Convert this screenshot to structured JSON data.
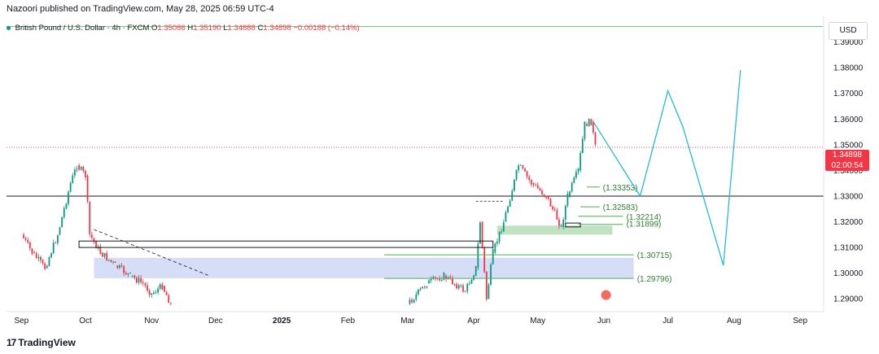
{
  "header": {
    "published": "Nazoori published on TradingView.com, May 28, 2025 06:59 UTC-4"
  },
  "legend": {
    "symbol": "British Pound / U.S. Dollar · 4h · FXCM",
    "open_label": "O",
    "open": "1.35086",
    "high_label": "H",
    "high": "1.35190",
    "low_label": "L",
    "low": "1.34888",
    "close_label": "C",
    "close": "1.34898",
    "change": "−0.00188 (−0.14%)"
  },
  "currency_button": "USD",
  "current_price": {
    "price": "1.34898",
    "countdown": "02:00:54"
  },
  "brand": {
    "logo": "17",
    "name": "TradingView"
  },
  "colors": {
    "up": "#089981",
    "down": "#f23645",
    "projection": "#22bcd4",
    "level": "#4caf50",
    "zone_blue": "#c5cff3",
    "zone_green": "#a5d6a7"
  },
  "chart_data": {
    "type": "candlestick",
    "title": "",
    "xlabel": "",
    "ylabel": "",
    "ylim": [
      1.285,
      1.4
    ],
    "x_ticks": [
      "Sep",
      "Oct",
      "Nov",
      "Dec",
      "2025",
      "Feb",
      "Mar",
      "Apr",
      "May",
      "Jun",
      "Jul",
      "Aug",
      "Sep"
    ],
    "y_ticks": [
      "1.39000",
      "1.38000",
      "1.37000",
      "1.36000",
      "1.35000",
      "1.34000",
      "1.33000",
      "1.32000",
      "1.31000",
      "1.30000",
      "1.29000"
    ],
    "price_path": [
      {
        "date": "2024-09-01",
        "price": 1.315
      },
      {
        "date": "2024-09-06",
        "price": 1.308
      },
      {
        "date": "2024-09-12",
        "price": 1.302
      },
      {
        "date": "2024-09-18",
        "price": 1.315
      },
      {
        "date": "2024-09-24",
        "price": 1.335
      },
      {
        "date": "2024-09-27",
        "price": 1.342
      },
      {
        "date": "2024-10-01",
        "price": 1.338
      },
      {
        "date": "2024-10-03",
        "price": 1.315
      },
      {
        "date": "2024-10-08",
        "price": 1.308
      },
      {
        "date": "2024-10-15",
        "price": 1.303
      },
      {
        "date": "2024-10-22",
        "price": 1.299
      },
      {
        "date": "2024-10-28",
        "price": 1.296
      },
      {
        "date": "2024-11-01",
        "price": 1.292
      },
      {
        "date": "2024-11-06",
        "price": 1.295
      },
      {
        "date": "2024-11-10",
        "price": 1.288
      },
      {
        "date": "2025-03-01",
        "price": 1.288
      },
      {
        "date": "2025-03-10",
        "price": 1.296
      },
      {
        "date": "2025-03-18",
        "price": 1.299
      },
      {
        "date": "2025-03-28",
        "price": 1.293
      },
      {
        "date": "2025-04-02",
        "price": 1.302
      },
      {
        "date": "2025-04-04",
        "price": 1.32
      },
      {
        "date": "2025-04-07",
        "price": 1.29
      },
      {
        "date": "2025-04-10",
        "price": 1.308
      },
      {
        "date": "2025-04-15",
        "price": 1.32
      },
      {
        "date": "2025-04-22",
        "price": 1.342
      },
      {
        "date": "2025-04-28",
        "price": 1.335
      },
      {
        "date": "2025-05-05",
        "price": 1.33
      },
      {
        "date": "2025-05-12",
        "price": 1.318
      },
      {
        "date": "2025-05-15",
        "price": 1.33
      },
      {
        "date": "2025-05-20",
        "price": 1.34
      },
      {
        "date": "2025-05-23",
        "price": 1.358
      },
      {
        "date": "2025-05-26",
        "price": 1.359
      },
      {
        "date": "2025-05-28",
        "price": 1.349
      }
    ],
    "horizontal_lines": [
      {
        "price": 1.396,
        "color": "#4caf50"
      },
      {
        "price": 1.33,
        "color": "#131722"
      },
      {
        "price": 1.34898,
        "color": "#f23645",
        "style": "dotted"
      }
    ],
    "levels": [
      {
        "label": "(1.33353)",
        "value": 1.33353
      },
      {
        "label": "(1.32583)",
        "value": 1.32583
      },
      {
        "label": "(1.32214)",
        "value": 1.32214
      },
      {
        "label": "(1.31899)",
        "value": 1.31899
      },
      {
        "label": "(1.30715)",
        "value": 1.30715
      },
      {
        "label": "(1.29796)",
        "value": 1.29796
      }
    ],
    "zones": [
      {
        "from": "2024-10-05",
        "to": "2025-06-15",
        "low": 1.298,
        "high": 1.306,
        "color": "#c5cff3"
      },
      {
        "from": "2025-04-12",
        "to": "2025-06-05",
        "low": 1.315,
        "high": 1.3185,
        "color": "#a5d6a7"
      }
    ],
    "projection": [
      {
        "date": "2025-05-27",
        "price": 1.359
      },
      {
        "date": "2025-06-18",
        "price": 1.33
      },
      {
        "date": "2025-07-01",
        "price": 1.371
      },
      {
        "date": "2025-07-08",
        "price": 1.357
      },
      {
        "date": "2025-07-27",
        "price": 1.303
      },
      {
        "date": "2025-08-04",
        "price": 1.379
      }
    ]
  }
}
